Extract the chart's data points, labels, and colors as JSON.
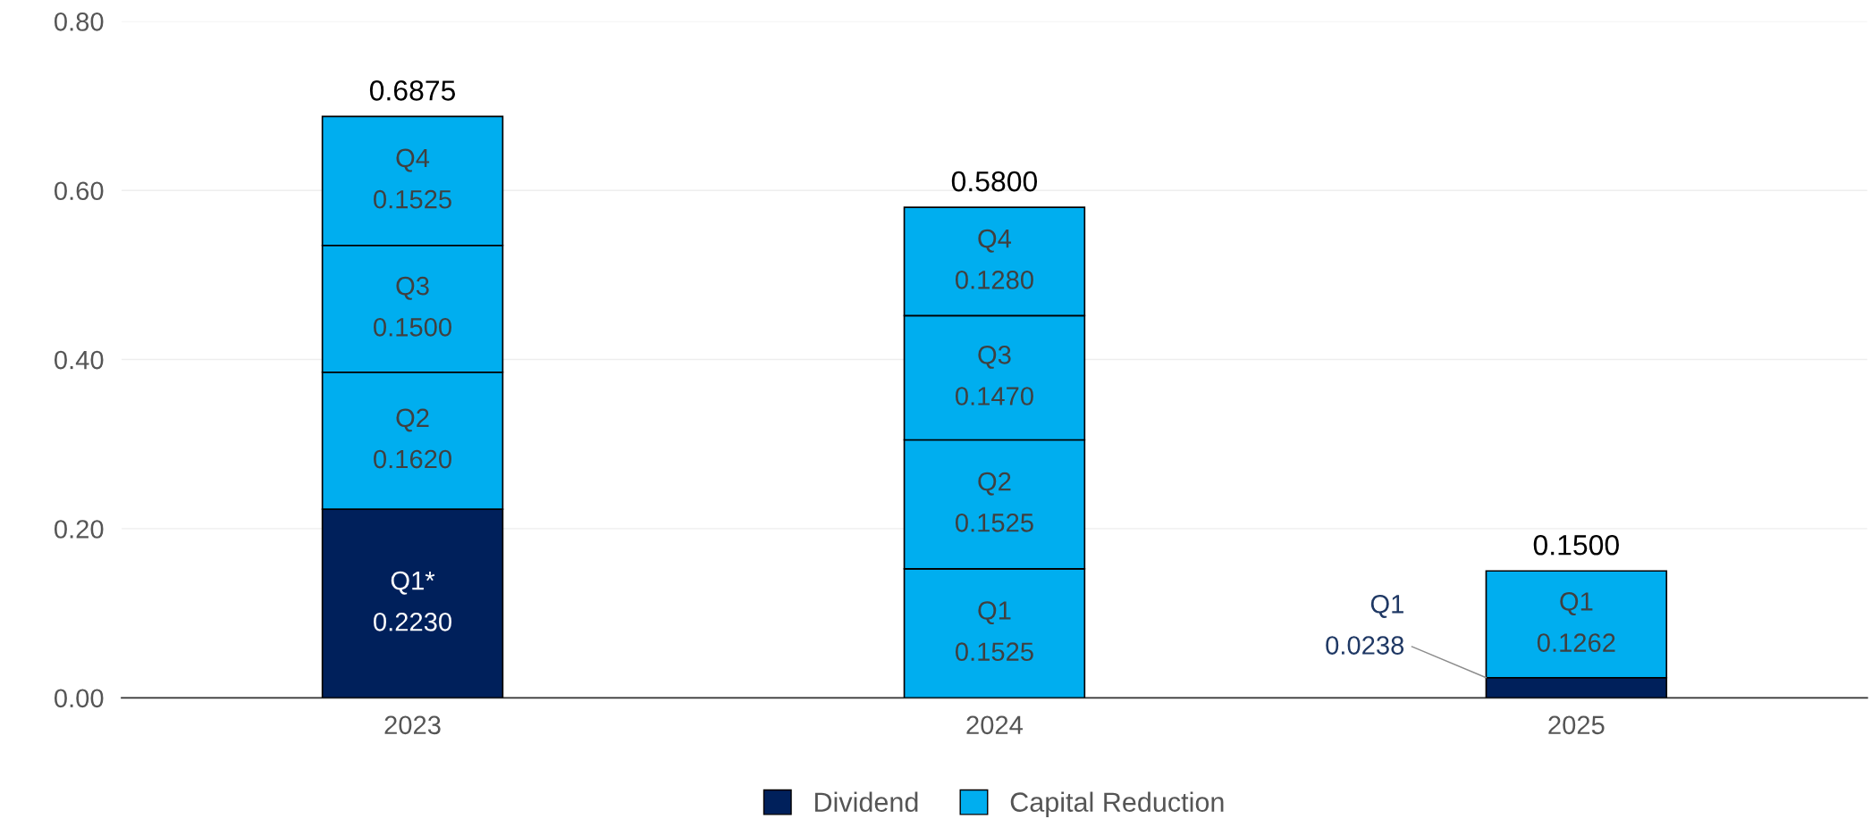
{
  "chart_data": {
    "type": "bar",
    "stacked": true,
    "categories": [
      "2023",
      "2024",
      "2025"
    ],
    "series": [
      {
        "name": "Dividend",
        "color": "#00205b",
        "values": [
          0.223,
          null,
          0.0238
        ],
        "value_labels": [
          "Q1*\n0.2230",
          null,
          "Q1\n0.0238"
        ]
      },
      {
        "name": "Capital Reduction",
        "color": "#00aeef",
        "values": [
          null,
          0.1525,
          0.1262
        ],
        "value_labels": [
          null,
          "Q1\n0.1525",
          "Q1\n0.1262"
        ]
      },
      {
        "color": "#00aeef",
        "values": [
          0.162,
          0.1525,
          null
        ],
        "value_labels": [
          "Q2\n0.1620",
          "Q2\n0.1525",
          null
        ]
      },
      {
        "color": "#00aeef",
        "values": [
          0.15,
          0.147,
          null
        ],
        "value_labels": [
          "Q3\n0.1500",
          "Q3\n0.1470",
          null
        ]
      },
      {
        "color": "#00aeef",
        "values": [
          0.1525,
          0.128,
          null
        ],
        "value_labels": [
          "Q4\n0.1525",
          "Q4\n0.1280",
          null
        ]
      }
    ],
    "totals": [
      "0.6875",
      "0.5800",
      "0.1500"
    ],
    "ylim": [
      0,
      0.8
    ],
    "yticks": [
      {
        "value": 0,
        "label": "0.00"
      },
      {
        "value": 0.2,
        "label": "0.20"
      },
      {
        "value": 0.4,
        "label": "0.40"
      },
      {
        "value": 0.6,
        "label": "0.60"
      },
      {
        "value": 0.8,
        "label": "0.80"
      }
    ],
    "grid": "y",
    "legend": "bottom"
  }
}
